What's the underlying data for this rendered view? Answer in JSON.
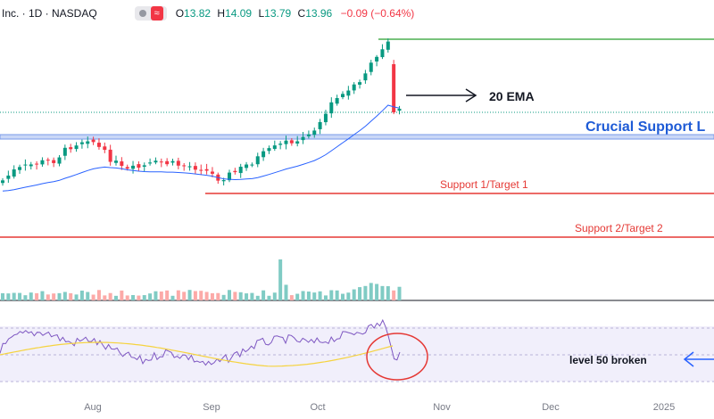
{
  "header": {
    "symbol": "Inc. · 1D · NASDAQ",
    "indicator_icon": "wave-icon",
    "open_label": "O",
    "open": "13.82",
    "high_label": "H",
    "high": "14.09",
    "low_label": "L",
    "low": "13.79",
    "close_label": "C",
    "close": "13.96",
    "change": "−0.09 (−0.64%)"
  },
  "colors": {
    "up": "#089981",
    "down": "#f23645",
    "ema": "#2962ff",
    "resistance": "#4caf50",
    "support": "#e53935",
    "crucial": "#1e5bd6",
    "rsi": "#7e57c2",
    "rsi_ma": "#f5d33f",
    "rsi_bg": "#f1effb",
    "vol_up": "#80cbc4",
    "vol_down": "#fcaaa8"
  },
  "annotations": {
    "ema_label": "20 EMA",
    "crucial_support": "Crucial Support L",
    "support1": "Support 1/Target 1",
    "support2": "Support 2/Target 2",
    "rsi_note": "level 50 broken"
  },
  "chart_data": {
    "type": "candlestick",
    "x_ticks": [
      "Aug",
      "Sep",
      "Oct",
      "Nov",
      "Dec",
      "2025"
    ],
    "last_candle": {
      "open": 13.82,
      "high": 14.09,
      "low": 13.79,
      "close": 13.96
    },
    "panels": [
      "price",
      "volume",
      "rsi"
    ]
  }
}
